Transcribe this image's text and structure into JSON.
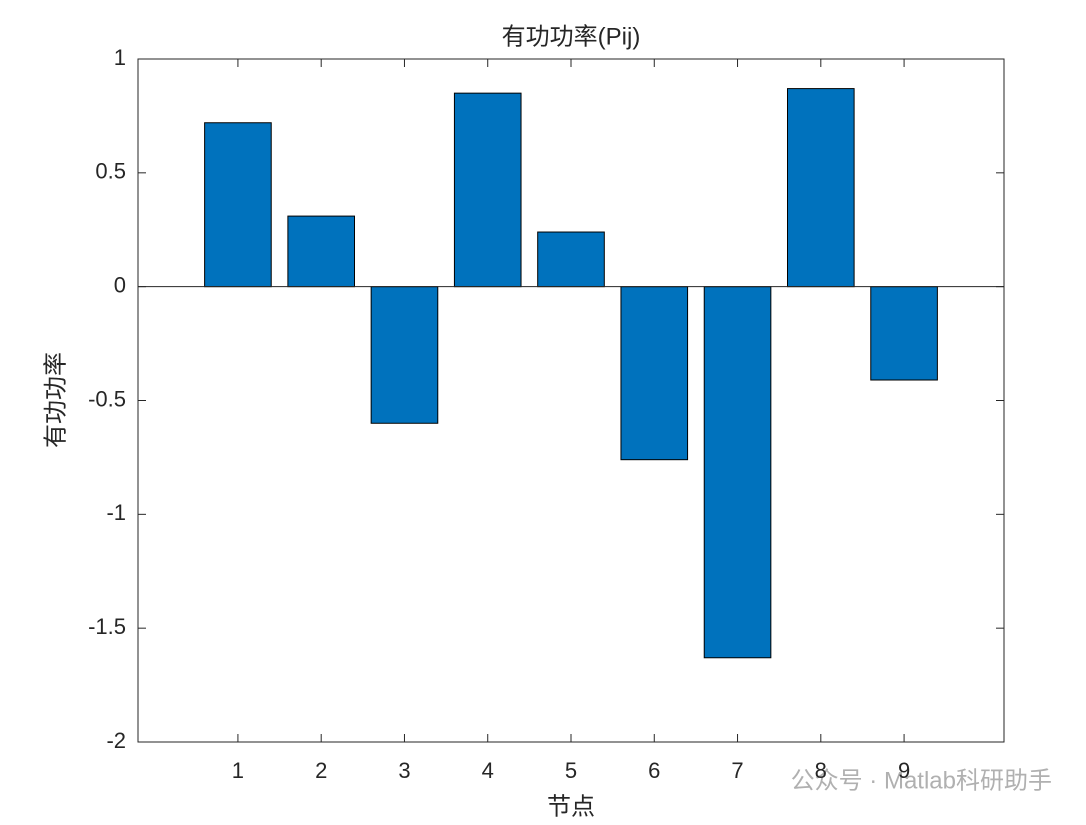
{
  "chart_data": {
    "type": "bar",
    "title": "有功功率(Pij)",
    "x_label": "节点",
    "y_label": "有功功率",
    "x": [
      1,
      2,
      3,
      4,
      5,
      6,
      7,
      8,
      9
    ],
    "values": [
      0.72,
      0.31,
      -0.6,
      0.85,
      0.24,
      -0.76,
      -1.63,
      0.87,
      -0.41
    ],
    "color": "#0072bd",
    "xlim": [
      -0.2,
      10.2
    ],
    "xticks": [
      1,
      2,
      3,
      4,
      5,
      6,
      7,
      8,
      9
    ],
    "ylim": [
      -2,
      1
    ],
    "yticks": [
      -2,
      -1.5,
      -1,
      -0.5,
      0,
      0.5,
      1
    ],
    "watermark": "公众号 · Matlab科研助手"
  }
}
